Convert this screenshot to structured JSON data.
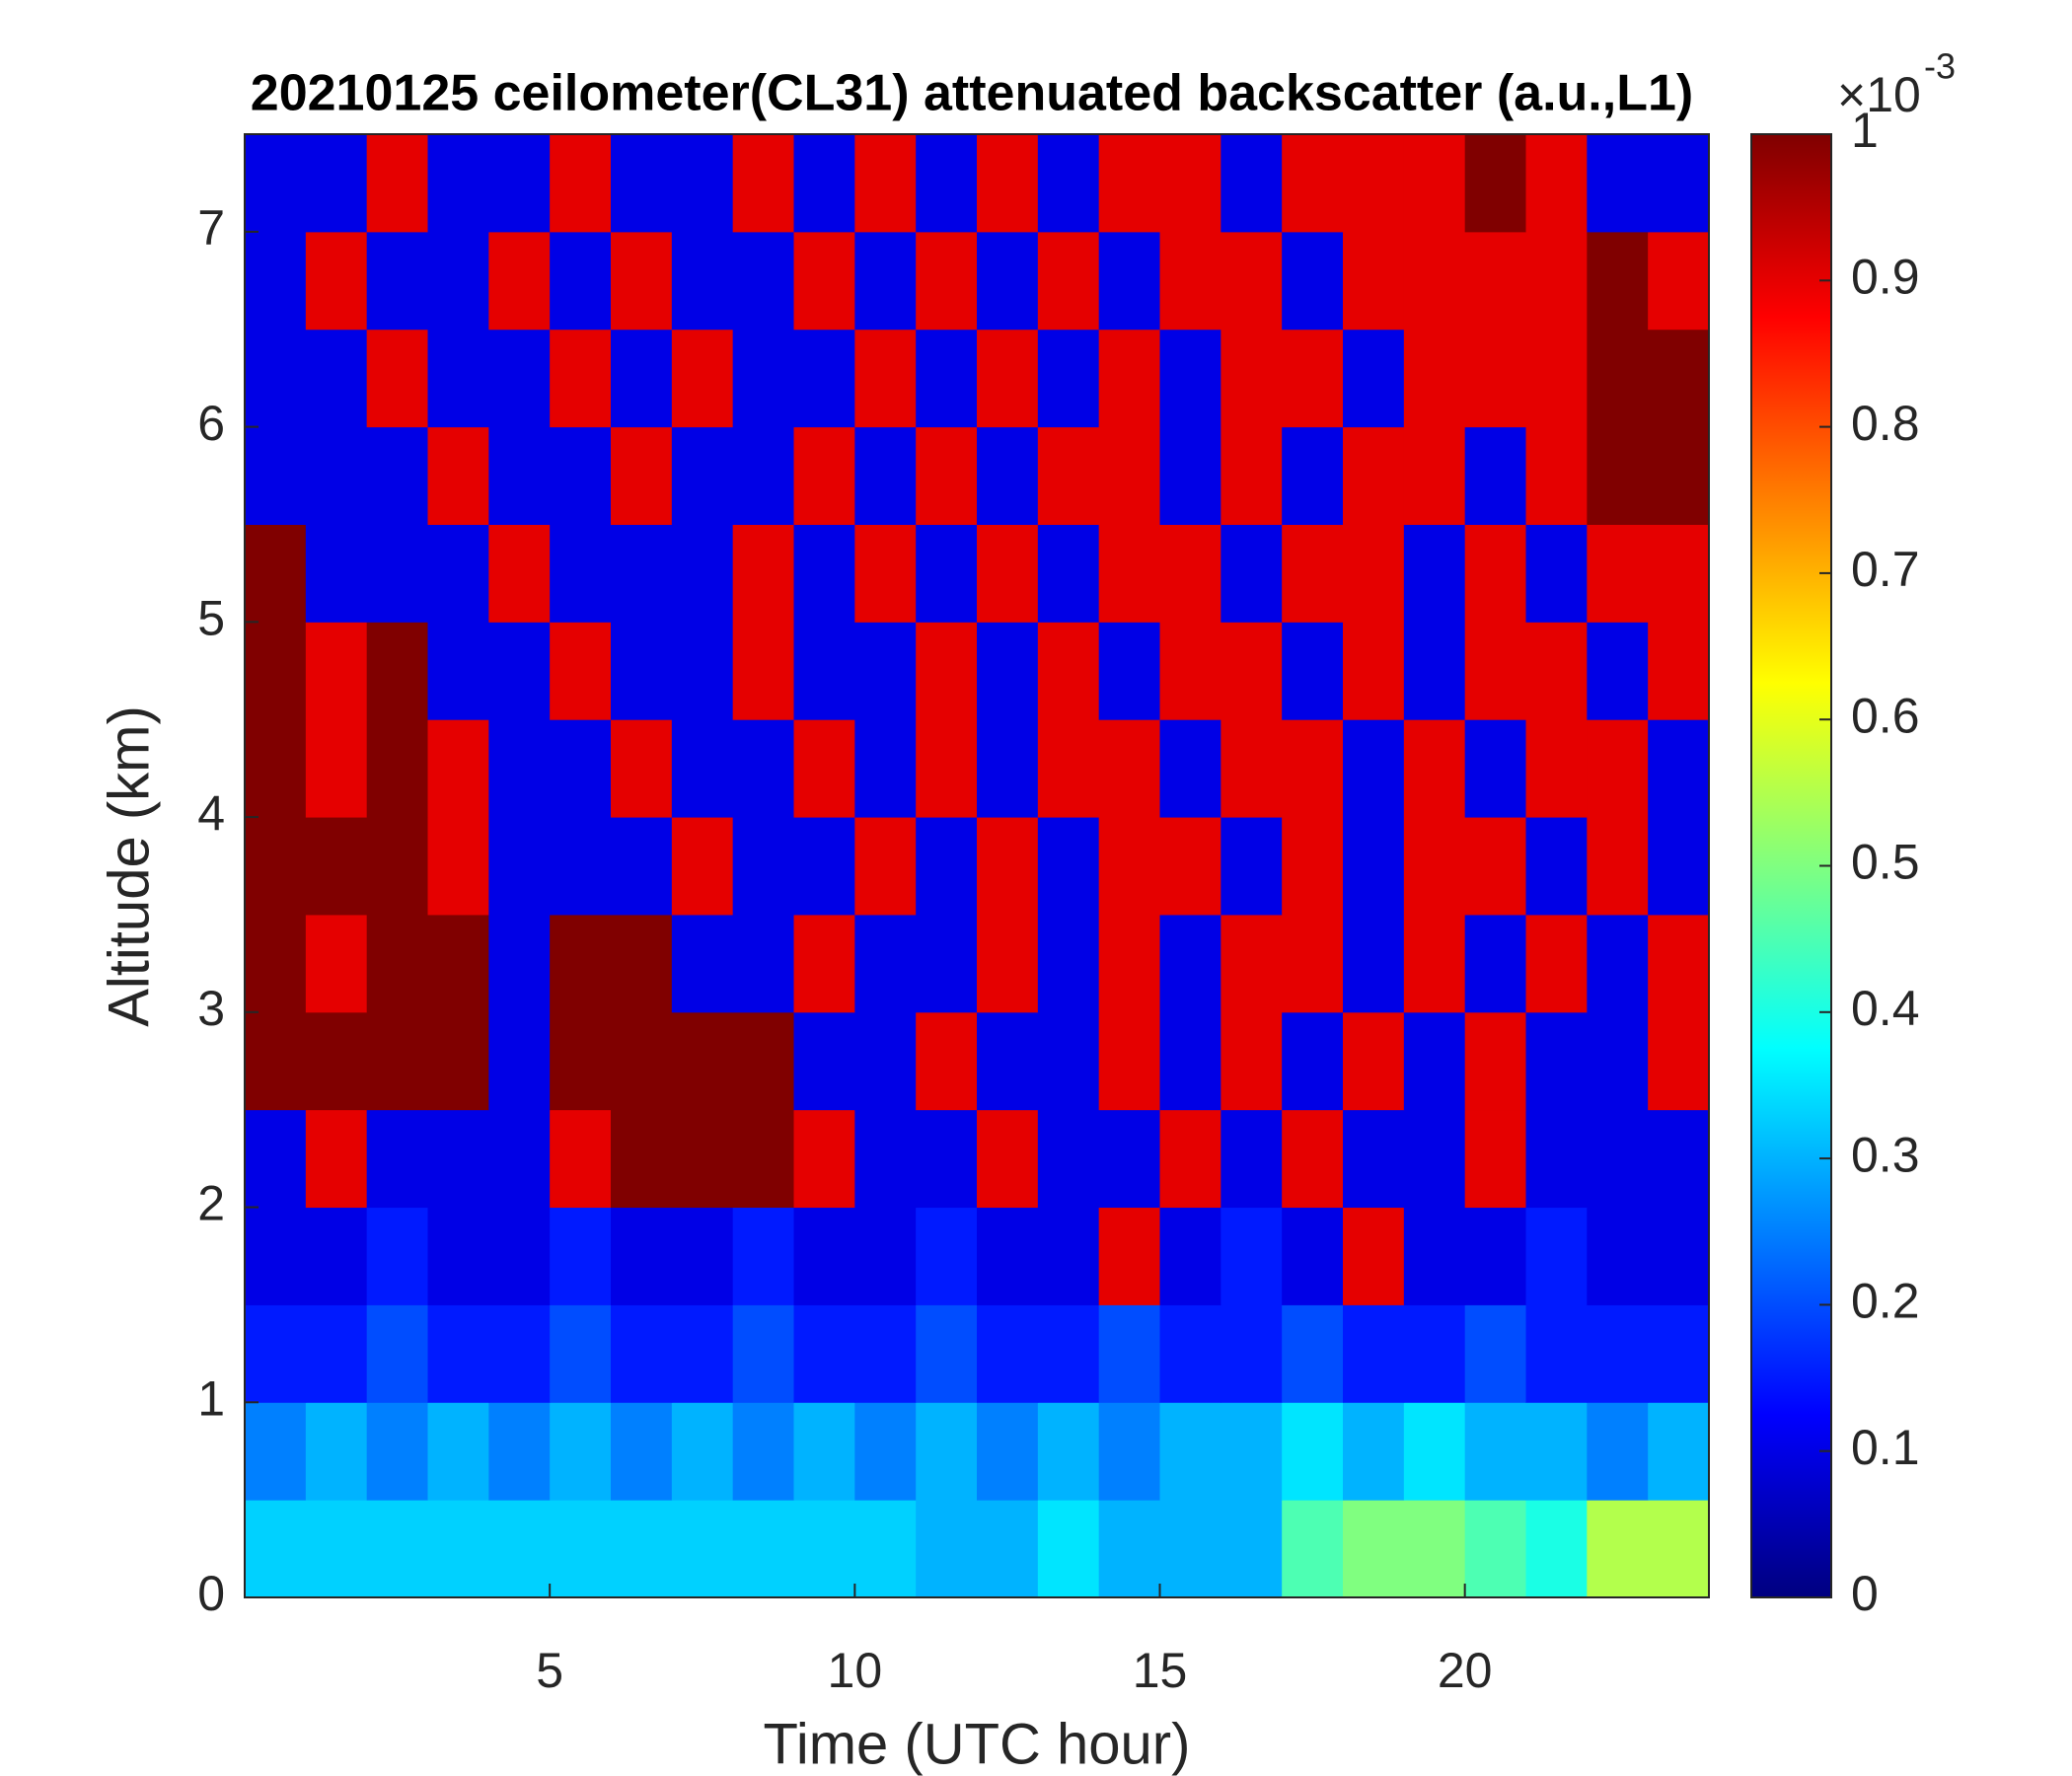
{
  "chart_data": {
    "type": "heatmap",
    "title": "20210125 ceilometer(CL31) attenuated backscatter (a.u.,L1)",
    "x_label": "Time (UTC hour)",
    "y_label": "Altitude (km)",
    "xlim": [
      0,
      24
    ],
    "xticks": [
      5,
      10,
      15,
      20
    ],
    "ylim": [
      0,
      7.5
    ],
    "yticks": [
      0,
      1,
      2,
      3,
      4,
      5,
      6,
      7
    ],
    "colormap": "jet",
    "clim": [
      0,
      1
    ],
    "cticks": [
      0,
      0.1,
      0.2,
      0.3,
      0.4,
      0.5,
      0.6,
      0.7,
      0.8,
      0.9,
      1
    ],
    "colorbar_multiplier": {
      "base": "×10",
      "exponent": "-3"
    },
    "z": [
      [
        0.33,
        0.33,
        0.33,
        0.33,
        0.33,
        0.33,
        0.33,
        0.33,
        0.33,
        0.33,
        0.33,
        0.3,
        0.3,
        0.35,
        0.3,
        0.3,
        0.3,
        0.45,
        0.5,
        0.5,
        0.45,
        0.4,
        0.55,
        0.55
      ],
      [
        0.25,
        0.3,
        0.25,
        0.3,
        0.25,
        0.3,
        0.25,
        0.3,
        0.25,
        0.3,
        0.25,
        0.3,
        0.25,
        0.3,
        0.25,
        0.3,
        0.3,
        0.35,
        0.3,
        0.35,
        0.3,
        0.3,
        0.25,
        0.3
      ],
      [
        0.15,
        0.15,
        0.2,
        0.15,
        0.15,
        0.2,
        0.15,
        0.15,
        0.2,
        0.15,
        0.15,
        0.2,
        0.15,
        0.15,
        0.2,
        0.15,
        0.15,
        0.2,
        0.15,
        0.15,
        0.2,
        0.15,
        0.15,
        0.15
      ],
      [
        0.1,
        0.1,
        0.15,
        0.1,
        0.1,
        0.15,
        0.1,
        0.1,
        0.15,
        0.1,
        0.1,
        0.15,
        0.1,
        0.1,
        0.9,
        0.1,
        0.15,
        0.1,
        0.9,
        0.1,
        0.1,
        0.15,
        0.1,
        0.1
      ],
      [
        0.1,
        0.9,
        0.1,
        0.1,
        0.1,
        0.9,
        1,
        1,
        1,
        0.9,
        0.1,
        0.1,
        0.9,
        0.1,
        0.1,
        0.9,
        0.1,
        0.9,
        0.1,
        0.1,
        0.9,
        0.1,
        0.1,
        0.1
      ],
      [
        1,
        1,
        1,
        1,
        0.1,
        1,
        1,
        1,
        1,
        0.1,
        0.1,
        0.9,
        0.1,
        0.1,
        0.9,
        0.1,
        0.9,
        0.1,
        0.9,
        0.1,
        0.9,
        0.1,
        0.1,
        0.9
      ],
      [
        1,
        0.9,
        1,
        1,
        0.1,
        1,
        1,
        0.1,
        0.1,
        0.9,
        0.1,
        0.1,
        0.9,
        0.1,
        0.9,
        0.1,
        0.9,
        0.9,
        0.1,
        0.9,
        0.1,
        0.9,
        0.1,
        0.9
      ],
      [
        1,
        1,
        1,
        0.9,
        0.1,
        0.1,
        0.1,
        0.9,
        0.1,
        0.1,
        0.9,
        0.1,
        0.9,
        0.1,
        0.9,
        0.9,
        0.1,
        0.9,
        0.1,
        0.9,
        0.9,
        0.1,
        0.9,
        0.1
      ],
      [
        1,
        0.9,
        1,
        0.9,
        0.1,
        0.1,
        0.9,
        0.1,
        0.1,
        0.9,
        0.1,
        0.9,
        0.1,
        0.9,
        0.9,
        0.1,
        0.9,
        0.9,
        0.1,
        0.9,
        0.1,
        0.9,
        0.9,
        0.1
      ],
      [
        1,
        0.9,
        1,
        0.1,
        0.1,
        0.9,
        0.1,
        0.1,
        0.9,
        0.1,
        0.1,
        0.9,
        0.1,
        0.9,
        0.1,
        0.9,
        0.9,
        0.1,
        0.9,
        0.1,
        0.9,
        0.9,
        0.1,
        0.9
      ],
      [
        1,
        0.1,
        0.1,
        0.1,
        0.9,
        0.1,
        0.1,
        0.1,
        0.9,
        0.1,
        0.9,
        0.1,
        0.9,
        0.1,
        0.9,
        0.9,
        0.1,
        0.9,
        0.9,
        0.1,
        0.9,
        0.1,
        0.9,
        0.9
      ],
      [
        0.1,
        0.1,
        0.1,
        0.9,
        0.1,
        0.1,
        0.9,
        0.1,
        0.1,
        0.9,
        0.1,
        0.9,
        0.1,
        0.9,
        0.9,
        0.1,
        0.9,
        0.1,
        0.9,
        0.9,
        0.1,
        0.9,
        1,
        1
      ],
      [
        0.1,
        0.1,
        0.9,
        0.1,
        0.1,
        0.9,
        0.1,
        0.9,
        0.1,
        0.1,
        0.9,
        0.1,
        0.9,
        0.1,
        0.9,
        0.1,
        0.9,
        0.9,
        0.1,
        0.9,
        0.9,
        0.9,
        1,
        1
      ],
      [
        0.1,
        0.9,
        0.1,
        0.1,
        0.9,
        0.1,
        0.9,
        0.1,
        0.1,
        0.9,
        0.1,
        0.9,
        0.1,
        0.9,
        0.1,
        0.9,
        0.9,
        0.1,
        0.9,
        0.9,
        0.9,
        0.9,
        1,
        0.9
      ],
      [
        0.1,
        0.1,
        0.9,
        0.1,
        0.1,
        0.9,
        0.1,
        0.1,
        0.9,
        0.1,
        0.9,
        0.1,
        0.9,
        0.1,
        0.9,
        0.9,
        0.1,
        0.9,
        0.9,
        0.9,
        1,
        0.9,
        0.1,
        0.1
      ]
    ]
  }
}
